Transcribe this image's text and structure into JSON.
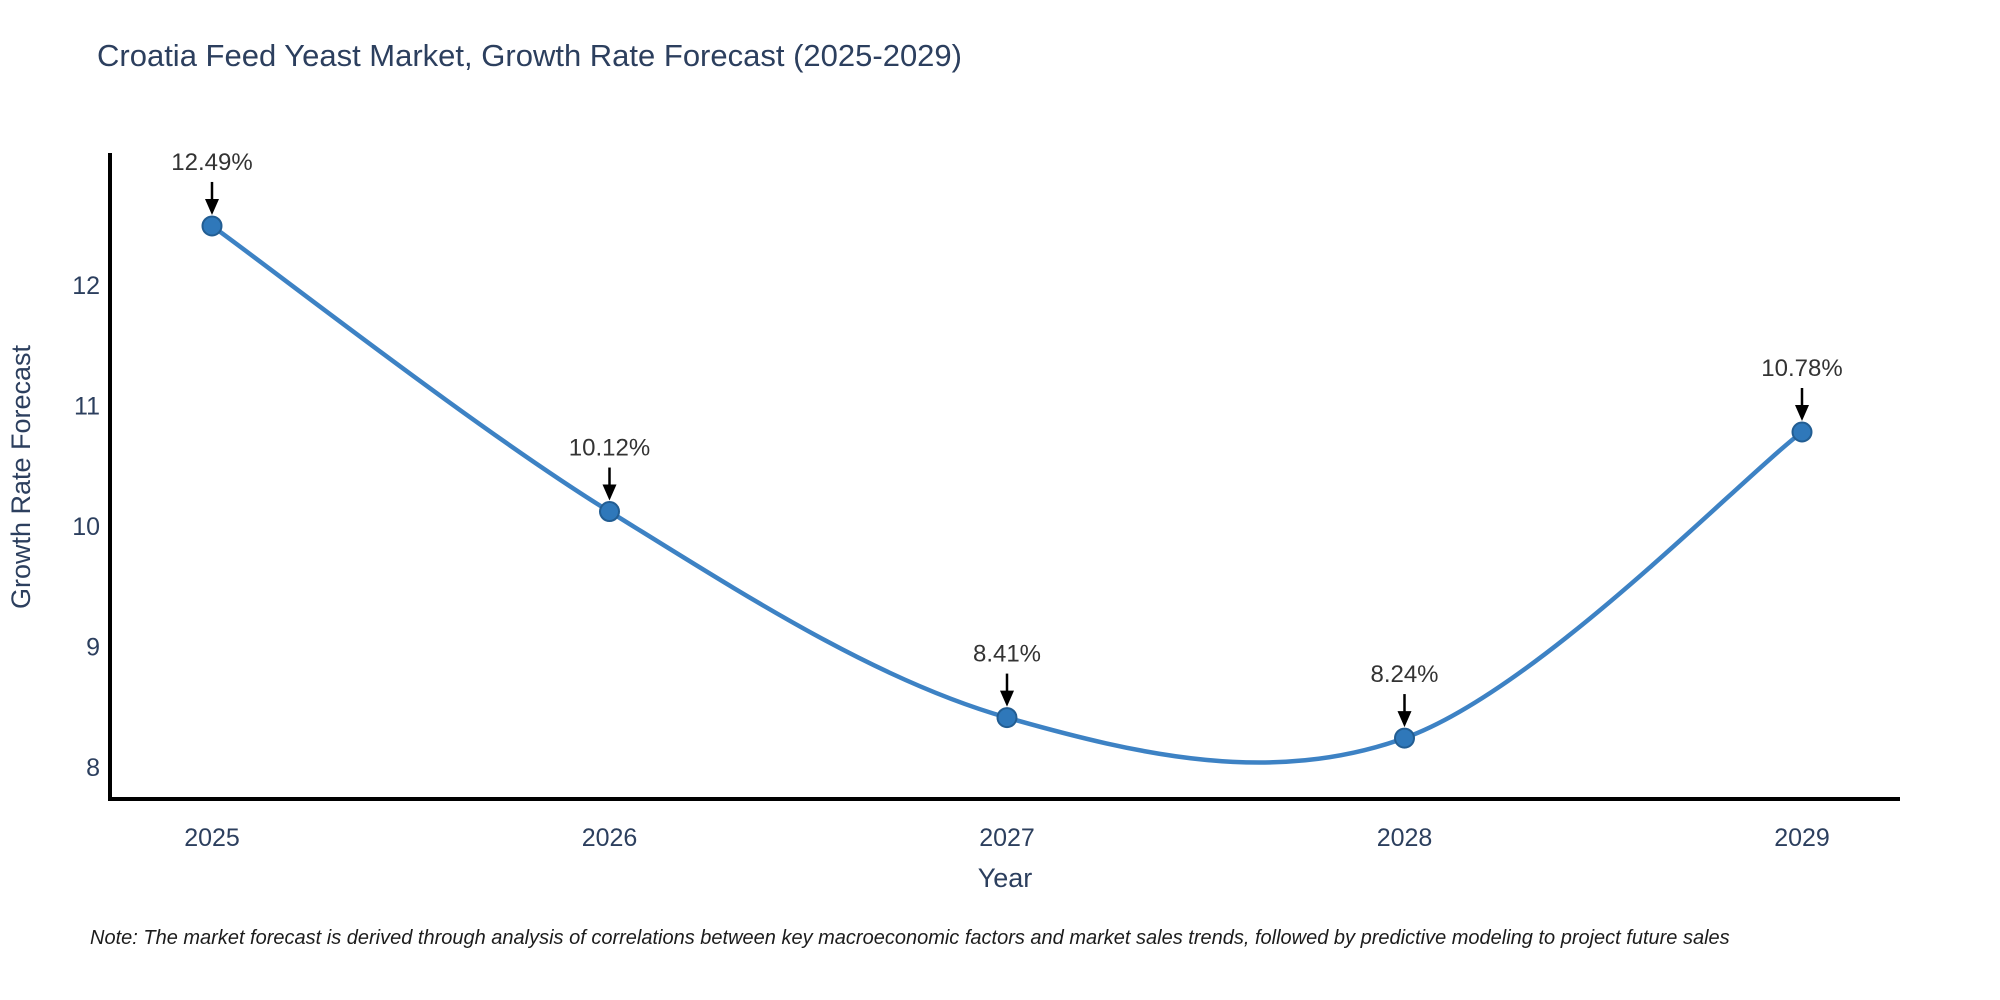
{
  "note": "Note: The market forecast is derived through analysis of correlations between key macroeconomic factors and market sales trends, followed by predictive modeling to project future sales",
  "colors": {
    "line": "#3d82c4",
    "marker_fill": "#2f78ba",
    "marker_edge": "#225d92",
    "axis": "#000000",
    "text": "#2c3f5e",
    "note_text": "#1c1c1c",
    "arrow": "#000000",
    "background": "#ffffff"
  },
  "chart_data": {
    "type": "line",
    "title": "Croatia Feed Yeast Market, Growth Rate Forecast (2025-2029)",
    "xlabel": "Year",
    "ylabel": "Growth Rate Forecast",
    "x": [
      2025,
      2026,
      2027,
      2028,
      2029
    ],
    "values": [
      12.49,
      10.12,
      8.41,
      8.24,
      10.78
    ],
    "point_labels": [
      "12.49%",
      "10.12%",
      "8.41%",
      "8.24%",
      "10.78%"
    ],
    "xticks": [
      "2025",
      "2026",
      "2027",
      "2028",
      "2029"
    ],
    "yticks": [
      8,
      9,
      10,
      11,
      12
    ],
    "xlim": [
      2024.74,
      2029.25
    ],
    "ylim": [
      7.73,
      13.12
    ],
    "grid": false,
    "legend": "none",
    "smooth": true,
    "annotations_have_arrows": true
  }
}
